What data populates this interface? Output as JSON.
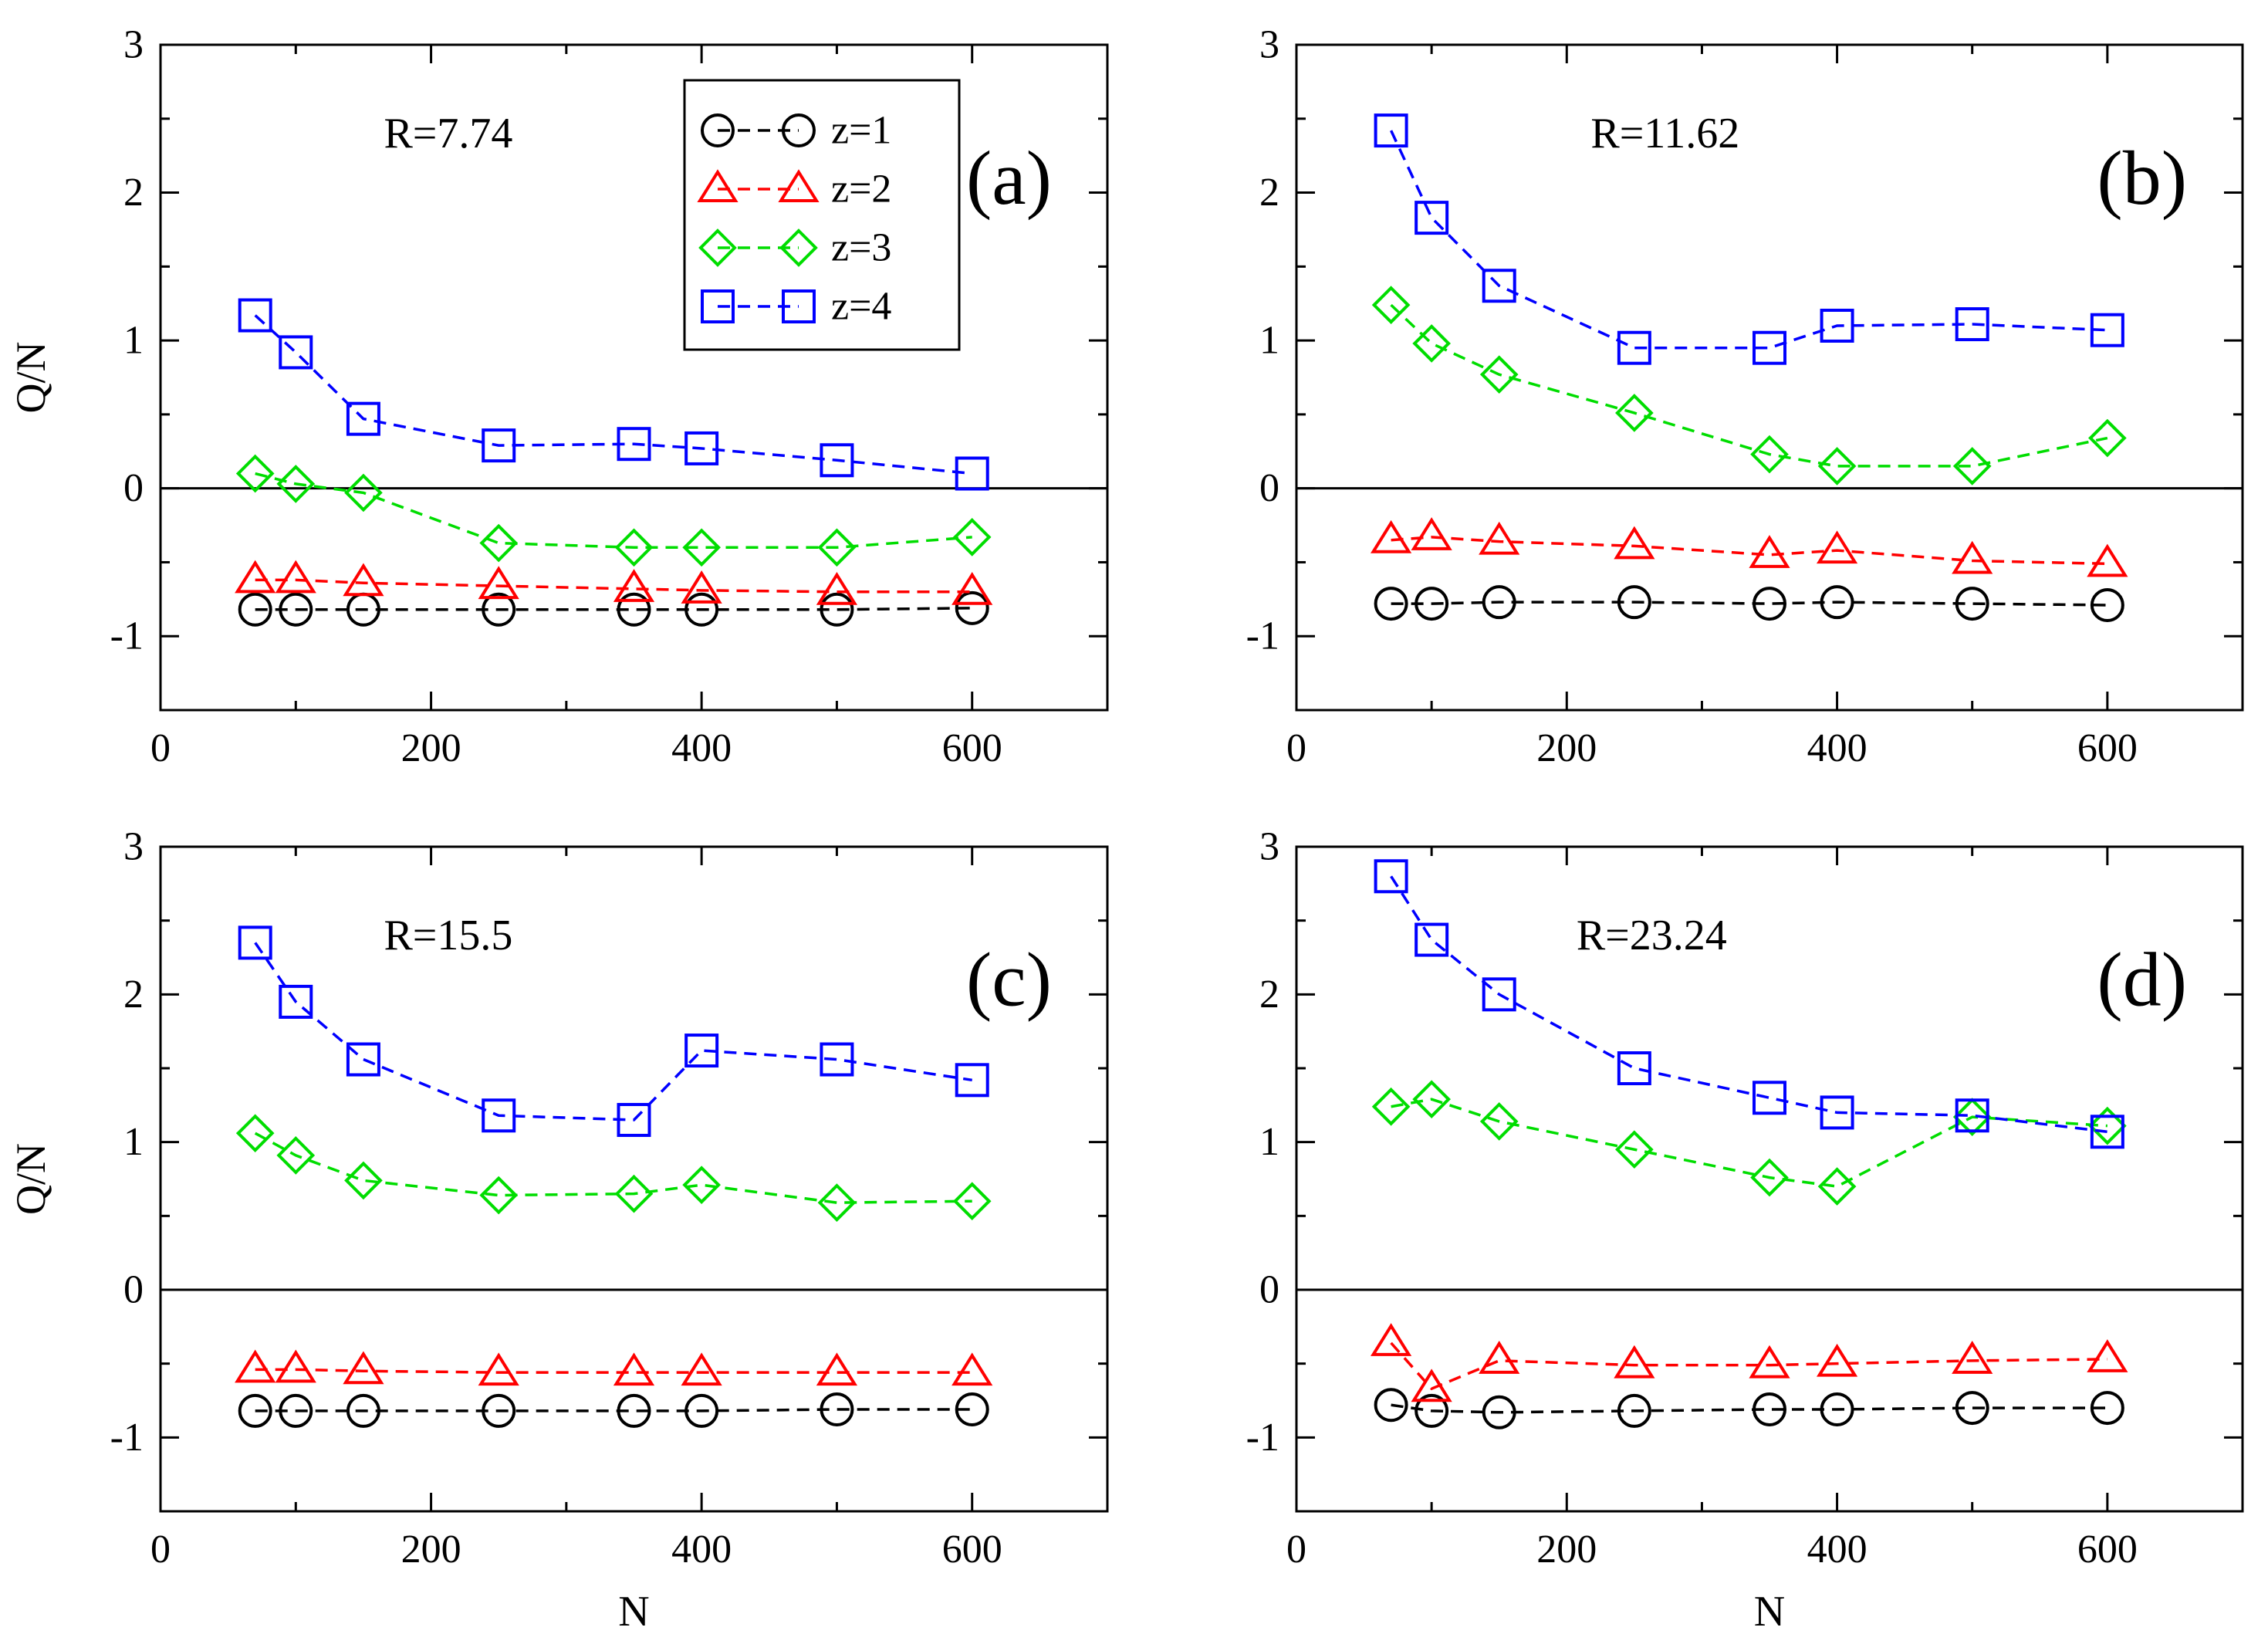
{
  "chart_data": [
    {
      "type": "line",
      "panel_label": "(a)",
      "annotation": "R=7.74",
      "xlabel": "",
      "ylabel": "Q/N",
      "xlim": [
        0,
        700
      ],
      "ylim": [
        -1.5,
        3
      ],
      "x_ticks": [
        "0",
        "200",
        "400",
        "600"
      ],
      "y_ticks": [
        "-1",
        "0",
        "1",
        "2",
        "3"
      ],
      "x": [
        70,
        100,
        150,
        250,
        350,
        400,
        500,
        600
      ],
      "legend": true,
      "series": [
        {
          "name": "z=1",
          "values": [
            -0.82,
            -0.82,
            -0.82,
            -0.82,
            -0.82,
            -0.82,
            -0.82,
            -0.81
          ]
        },
        {
          "name": "z=2",
          "values": [
            -0.62,
            -0.62,
            -0.64,
            -0.66,
            -0.68,
            -0.69,
            -0.7,
            -0.7
          ]
        },
        {
          "name": "z=3",
          "values": [
            0.1,
            0.03,
            -0.03,
            -0.37,
            -0.4,
            -0.4,
            -0.4,
            -0.33
          ]
        },
        {
          "name": "z=4",
          "values": [
            1.17,
            0.92,
            0.47,
            0.29,
            0.3,
            0.27,
            0.19,
            0.1
          ]
        }
      ]
    },
    {
      "type": "line",
      "panel_label": "(b)",
      "annotation": "R=11.62",
      "xlabel": "",
      "ylabel": "",
      "xlim": [
        0,
        700
      ],
      "ylim": [
        -1.5,
        3
      ],
      "x_ticks": [
        "0",
        "200",
        "400",
        "600"
      ],
      "y_ticks": [
        "-1",
        "0",
        "1",
        "2",
        "3"
      ],
      "x": [
        70,
        100,
        150,
        250,
        350,
        400,
        500,
        600
      ],
      "legend": false,
      "series": [
        {
          "name": "z=1",
          "values": [
            -0.78,
            -0.78,
            -0.77,
            -0.77,
            -0.78,
            -0.77,
            -0.78,
            -0.79
          ]
        },
        {
          "name": "z=2",
          "values": [
            -0.35,
            -0.33,
            -0.36,
            -0.39,
            -0.45,
            -0.42,
            -0.49,
            -0.51
          ]
        },
        {
          "name": "z=3",
          "values": [
            1.24,
            0.98,
            0.77,
            0.51,
            0.23,
            0.15,
            0.15,
            0.34
          ]
        },
        {
          "name": "z=4",
          "values": [
            2.42,
            1.83,
            1.37,
            0.95,
            0.95,
            1.1,
            1.11,
            1.07
          ]
        }
      ]
    },
    {
      "type": "line",
      "panel_label": "(c)",
      "annotation": "R=15.5",
      "xlabel": "N",
      "ylabel": "Q/N",
      "xlim": [
        0,
        700
      ],
      "ylim": [
        -1.5,
        3
      ],
      "x_ticks": [
        "0",
        "200",
        "400",
        "600"
      ],
      "y_ticks": [
        "-1",
        "0",
        "1",
        "2",
        "3"
      ],
      "x": [
        70,
        100,
        150,
        250,
        350,
        400,
        500,
        600
      ],
      "legend": false,
      "series": [
        {
          "name": "z=1",
          "values": [
            -0.82,
            -0.82,
            -0.82,
            -0.82,
            -0.82,
            -0.82,
            -0.81,
            -0.81
          ]
        },
        {
          "name": "z=2",
          "values": [
            -0.54,
            -0.54,
            -0.55,
            -0.56,
            -0.56,
            -0.56,
            -0.56,
            -0.56
          ]
        },
        {
          "name": "z=3",
          "values": [
            1.06,
            0.91,
            0.74,
            0.64,
            0.65,
            0.71,
            0.59,
            0.6
          ]
        },
        {
          "name": "z=4",
          "values": [
            2.35,
            1.95,
            1.56,
            1.18,
            1.15,
            1.62,
            1.56,
            1.42
          ]
        }
      ]
    },
    {
      "type": "line",
      "panel_label": "(d)",
      "annotation": "R=23.24",
      "xlabel": "N",
      "ylabel": "",
      "xlim": [
        0,
        700
      ],
      "ylim": [
        -1.5,
        3
      ],
      "x_ticks": [
        "0",
        "200",
        "400",
        "600"
      ],
      "y_ticks": [
        "-1",
        "0",
        "1",
        "2",
        "3"
      ],
      "x": [
        70,
        100,
        150,
        250,
        350,
        400,
        500,
        600
      ],
      "legend": false,
      "series": [
        {
          "name": "z=1",
          "values": [
            -0.78,
            -0.82,
            -0.83,
            -0.82,
            -0.81,
            -0.81,
            -0.8,
            -0.8
          ]
        },
        {
          "name": "z=2",
          "values": [
            -0.36,
            -0.67,
            -0.48,
            -0.51,
            -0.51,
            -0.5,
            -0.48,
            -0.47
          ]
        },
        {
          "name": "z=3",
          "values": [
            1.24,
            1.29,
            1.14,
            0.95,
            0.76,
            0.7,
            1.17,
            1.11
          ]
        },
        {
          "name": "z=4",
          "values": [
            2.8,
            2.37,
            2.0,
            1.5,
            1.3,
            1.2,
            1.18,
            1.07
          ]
        }
      ]
    }
  ],
  "series_styles": [
    {
      "name": "z=1",
      "color": "#000000",
      "marker": "circle"
    },
    {
      "name": "z=2",
      "color": "#ff0000",
      "marker": "triangle"
    },
    {
      "name": "z=3",
      "color": "#00dd00",
      "marker": "diamond"
    },
    {
      "name": "z=4",
      "color": "#0000ff",
      "marker": "square"
    }
  ]
}
